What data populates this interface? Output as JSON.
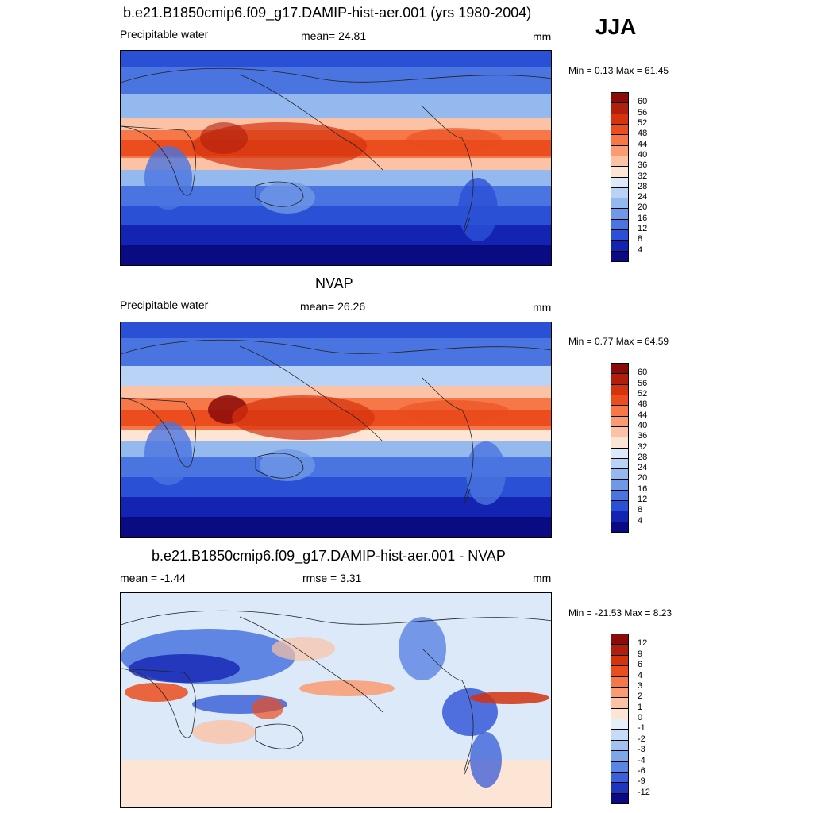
{
  "season": "JJA",
  "panels": [
    {
      "title": "b.e21.B1850cmip6.f09_g17.DAMIP-hist-aer.001 (yrs 1980-2004)",
      "left_label": "Precipitable water",
      "center_label": "mean=  24.81",
      "units": "mm",
      "minmax": "Min =   0.13 Max =  61.45",
      "kind": "abs",
      "colorbar_labels": [
        "60",
        "56",
        "52",
        "48",
        "44",
        "40",
        "36",
        "32",
        "28",
        "24",
        "20",
        "16",
        "12",
        "8",
        "4"
      ]
    },
    {
      "title": "NVAP",
      "left_label": "Precipitable water",
      "center_label": "mean=  26.26",
      "units": "mm",
      "minmax": "Min =   0.77 Max =  64.59",
      "kind": "abs",
      "colorbar_labels": [
        "60",
        "56",
        "52",
        "48",
        "44",
        "40",
        "36",
        "32",
        "28",
        "24",
        "20",
        "16",
        "12",
        "8",
        "4"
      ]
    },
    {
      "title": "b.e21.B1850cmip6.f09_g17.DAMIP-hist-aer.001 - NVAP",
      "left_label": "mean =  -1.44",
      "center_label": "rmse =   3.31",
      "units": "mm",
      "minmax": "Min = -21.53 Max =   8.23",
      "kind": "diff",
      "colorbar_labels": [
        "12",
        "9",
        "6",
        "4",
        "3",
        "2",
        "1",
        "0",
        "-1",
        "-2",
        "-3",
        "-4",
        "-6",
        "-9",
        "-12"
      ]
    }
  ],
  "colors": {
    "abs_scale": [
      "#8b0a0a",
      "#b01e0c",
      "#d5320e",
      "#eb4d1e",
      "#f67848",
      "#fa9b72",
      "#fbc2a5",
      "#fde5d6",
      "#dbe9f8",
      "#b8d3f5",
      "#94b9ee",
      "#6f98e6",
      "#4a74df",
      "#2a50d6",
      "#1424b2",
      "#0a0a82"
    ],
    "diff_scale": [
      "#8b0a0a",
      "#b01e0c",
      "#d5320e",
      "#eb4d1e",
      "#f67848",
      "#fa9b72",
      "#fbc2a5",
      "#fde5d6",
      "#e6eefa",
      "#c5dbf7",
      "#a2c3f1",
      "#7ea7ea",
      "#5a86e3",
      "#3a60da",
      "#1d35c0",
      "#0a0a82"
    ],
    "diff_background": "#dbe9f8"
  }
}
